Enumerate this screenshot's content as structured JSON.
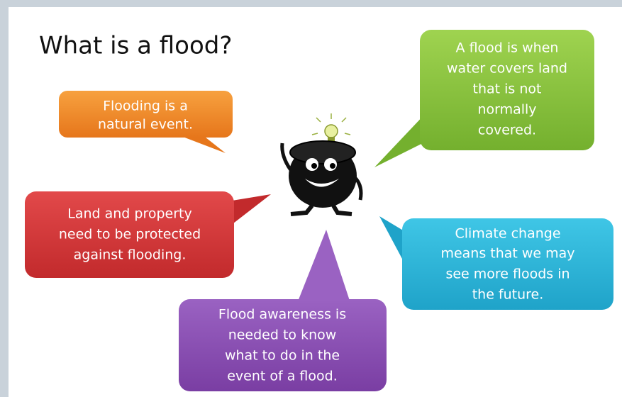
{
  "title": "What is a flood?",
  "bubbles": [
    {
      "lines": [
        "Flooding is a",
        "natural event."
      ]
    },
    {
      "lines": [
        "A flood is when",
        "water covers land",
        "that is not",
        "normally",
        "covered."
      ]
    },
    {
      "lines": [
        "Land and property",
        "need to be protected",
        "against flooding."
      ]
    },
    {
      "lines": [
        "Climate change",
        "means that we may",
        "see more floods in",
        "the future."
      ]
    },
    {
      "lines": [
        "Flood awareness is",
        "needed to know",
        "what to do in the",
        "event of a flood."
      ]
    }
  ]
}
